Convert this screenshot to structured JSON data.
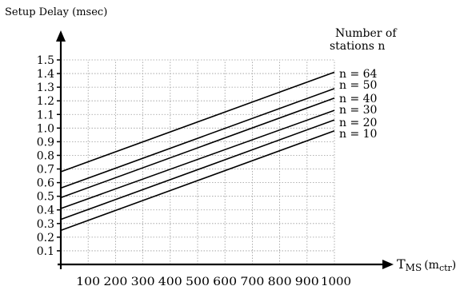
{
  "chart_data": {
    "type": "line",
    "ylabel": "Setup Delay (msec)",
    "xlabel_main": "T",
    "xlabel_sub": "MS",
    "xlabel_unit_main": "(m",
    "xlabel_unit_sub": "ctr",
    "xlabel_unit_close": ")",
    "legend_title_line1": "Number of",
    "legend_title_line2": "stations n",
    "xlim": [
      0,
      1000
    ],
    "ylim": [
      0,
      1.5
    ],
    "grid": true,
    "x_ticks": [
      100,
      200,
      300,
      400,
      500,
      600,
      700,
      800,
      900,
      1000
    ],
    "x_tick_labels": [
      "100",
      "200",
      "300",
      "400",
      "500",
      "600",
      "700",
      "800",
      "900",
      "1000"
    ],
    "y_ticks": [
      0.1,
      0.2,
      0.3,
      0.4,
      0.5,
      0.6,
      0.7,
      0.8,
      0.9,
      1.0,
      1.1,
      1.2,
      1.3,
      1.4,
      1.5
    ],
    "y_tick_labels": [
      "0.1",
      "0.2",
      "0.3",
      "0.4",
      "0.5",
      "0.6",
      "0.7",
      "0.8",
      "0.9",
      "1.0",
      "1.1",
      "1.2",
      "1.3",
      "1.4",
      "1.5"
    ],
    "series": [
      {
        "name": "n = 64",
        "x": [
          0,
          1000
        ],
        "y": [
          0.68,
          1.41
        ]
      },
      {
        "name": "n = 50",
        "x": [
          0,
          1000
        ],
        "y": [
          0.56,
          1.29
        ]
      },
      {
        "name": "n = 40",
        "x": [
          0,
          1000
        ],
        "y": [
          0.49,
          1.22
        ]
      },
      {
        "name": "n = 30",
        "x": [
          0,
          1000
        ],
        "y": [
          0.41,
          1.13
        ]
      },
      {
        "name": "n = 20",
        "x": [
          0,
          1000
        ],
        "y": [
          0.33,
          1.06
        ]
      },
      {
        "name": "n = 10",
        "x": [
          0,
          1000
        ],
        "y": [
          0.25,
          0.98
        ]
      }
    ]
  }
}
